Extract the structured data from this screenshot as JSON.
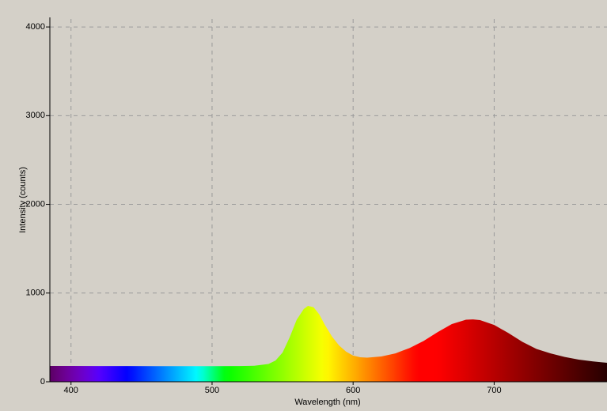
{
  "chart_data": {
    "type": "area",
    "x_label": "Wavelength (nm)",
    "y_label": "Intensity (counts)",
    "x": [
      385,
      400,
      420,
      440,
      460,
      480,
      500,
      520,
      530,
      540,
      545,
      550,
      555,
      560,
      565,
      568,
      572,
      576,
      580,
      585,
      590,
      595,
      600,
      605,
      610,
      620,
      630,
      640,
      650,
      660,
      670,
      680,
      685,
      690,
      700,
      710,
      720,
      730,
      740,
      750,
      760,
      770,
      780
    ],
    "values": [
      178,
      178,
      177,
      177,
      176,
      176,
      176,
      177,
      180,
      200,
      240,
      330,
      500,
      700,
      820,
      855,
      840,
      760,
      640,
      510,
      410,
      340,
      295,
      276,
      272,
      285,
      320,
      380,
      460,
      560,
      650,
      700,
      703,
      695,
      640,
      550,
      450,
      370,
      320,
      280,
      250,
      230,
      214
    ],
    "xlim": [
      385,
      780
    ],
    "ylim": [
      0,
      4090
    ],
    "xticks": [
      400,
      500,
      600,
      700
    ],
    "yticks": [
      0,
      1000,
      2000,
      3000,
      4000
    ],
    "grid": true,
    "fill": "spectrum"
  }
}
